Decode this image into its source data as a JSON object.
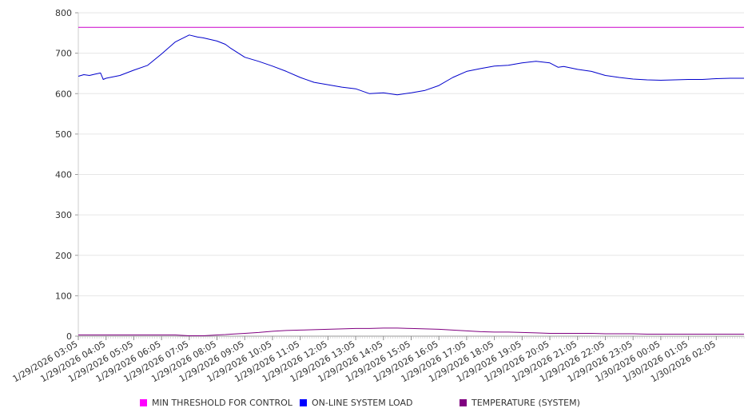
{
  "chart_data": {
    "type": "line",
    "title": "",
    "xlabel": "",
    "ylabel": "",
    "ylim": [
      0,
      800
    ],
    "yticks": [
      0,
      100,
      200,
      300,
      400,
      500,
      600,
      700,
      800
    ],
    "grid": true,
    "x_tick_labels": [
      "1/29/2026 03:05",
      "1/29/2026 04:05",
      "1/29/2026 05:05",
      "1/29/2026 06:05",
      "1/29/2026 07:05",
      "1/29/2026 08:05",
      "1/29/2026 09:05",
      "1/29/2026 10:05",
      "1/29/2026 11:05",
      "1/29/2026 12:05",
      "1/29/2026 13:05",
      "1/29/2026 14:05",
      "1/29/2026 15:05",
      "1/29/2026 16:05",
      "1/29/2026 17:05",
      "1/29/2026 18:05",
      "1/29/2026 19:05",
      "1/29/2026 20:05",
      "1/29/2026 21:05",
      "1/29/2026 22:05",
      "1/29/2026 23:05",
      "1/30/2026 00:05",
      "1/30/2026 01:05",
      "1/30/2026 02:05"
    ],
    "x_hours": [
      0,
      0.2,
      0.4,
      0.6,
      0.8,
      0.9,
      1,
      1.5,
      2,
      2.5,
      3,
      3.5,
      4,
      4.3,
      4.5,
      5,
      5.3,
      5.5,
      6,
      6.5,
      7,
      7.5,
      8,
      8.5,
      9,
      9.5,
      10,
      10.5,
      11,
      11.5,
      12,
      12.5,
      13,
      13.5,
      14,
      14.5,
      15,
      15.5,
      16,
      16.5,
      17,
      17.3,
      17.5,
      18,
      18.5,
      19,
      19.5,
      20,
      20.5,
      21,
      21.5,
      22,
      22.5,
      23,
      23.5,
      24
    ],
    "legend_position": "bottom",
    "series": [
      {
        "name": "MIN THRESHOLD FOR CONTROL",
        "color": "#cc00cc",
        "values": [
          764,
          764,
          764,
          764,
          764,
          764,
          764,
          764,
          764,
          764,
          764,
          764,
          764,
          764,
          764,
          764,
          764,
          764,
          764,
          764,
          764,
          764,
          764,
          764,
          764,
          764,
          764,
          764,
          764,
          764,
          764,
          764,
          764,
          764,
          764,
          764,
          764,
          764,
          764,
          764,
          764,
          764,
          764,
          764,
          764,
          764,
          764,
          764,
          764,
          764,
          764,
          764,
          764,
          764,
          764,
          764
        ]
      },
      {
        "name": "ON-LINE SYSTEM LOAD",
        "color": "#0000cc",
        "values": [
          643,
          647,
          645,
          648,
          651,
          635,
          638,
          645,
          658,
          670,
          698,
          728,
          745,
          740,
          738,
          730,
          722,
          712,
          690,
          680,
          668,
          655,
          640,
          628,
          622,
          616,
          612,
          600,
          602,
          597,
          602,
          608,
          620,
          640,
          655,
          662,
          668,
          670,
          676,
          680,
          676,
          665,
          667,
          660,
          655,
          645,
          640,
          636,
          634,
          633,
          634,
          635,
          635,
          637,
          638,
          638
        ]
      },
      {
        "name": "TEMPERATURE (SYSTEM)",
        "color": "#800080",
        "values": [
          3,
          3,
          3,
          3,
          3,
          3,
          3,
          3,
          3,
          3,
          3,
          3,
          1,
          1,
          1,
          3,
          4,
          5,
          7,
          9,
          12,
          14,
          15,
          16,
          17,
          18,
          19,
          19,
          20,
          20,
          19,
          18,
          17,
          15,
          13,
          11,
          10,
          10,
          9,
          8,
          7,
          7,
          7,
          7,
          7,
          6,
          6,
          6,
          5,
          5,
          5,
          5,
          5,
          5,
          5,
          5
        ]
      }
    ]
  }
}
